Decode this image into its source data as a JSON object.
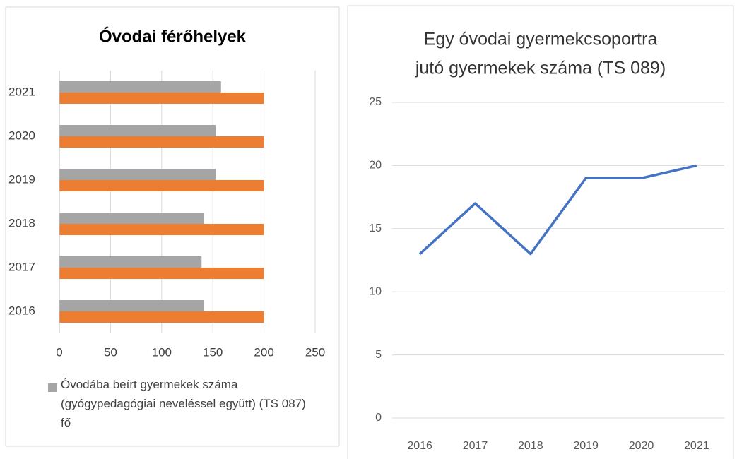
{
  "chart_data": [
    {
      "type": "barh",
      "title": "Óvodai férőhelyek",
      "categories": [
        "2016",
        "2017",
        "2018",
        "2019",
        "2020",
        "2021"
      ],
      "series": [
        {
          "name": "Óvodába beírt gyermekek száma (gyógypedagógiai neveléssel együtt) (TS 087) fő",
          "color": "#a5a5a5",
          "values": [
            141,
            139,
            141,
            153,
            153,
            158
          ]
        },
        {
          "color": "#ed7d31",
          "values": [
            200,
            200,
            200,
            200,
            200,
            200
          ]
        }
      ],
      "xlim": [
        0,
        250
      ],
      "xticks": [
        0,
        50,
        100,
        150,
        200,
        250
      ],
      "grid": true
    },
    {
      "type": "line",
      "title_lines": [
        "Egy óvodai gyermekcsoportra",
        "jutó gyermekek száma (TS 089)"
      ],
      "categories": [
        "2016",
        "2017",
        "2018",
        "2019",
        "2020",
        "2021"
      ],
      "series": [
        {
          "color": "#4472c4",
          "values": [
            13,
            17,
            13,
            19,
            19,
            20
          ]
        }
      ],
      "ylim": [
        0,
        25
      ],
      "yticks": [
        0,
        5,
        10,
        15,
        20,
        25
      ],
      "grid": true
    }
  ]
}
